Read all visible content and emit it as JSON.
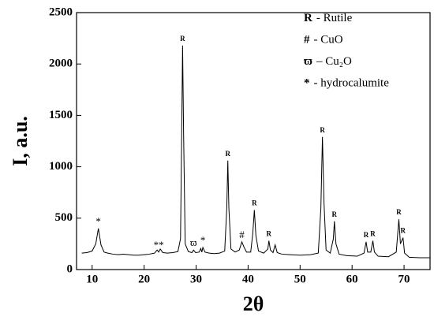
{
  "chart_data": {
    "type": "line",
    "color": "#000000",
    "x_label": "2θ",
    "y_label": "I, a.u.",
    "xlim": [
      7,
      75
    ],
    "ylim": [
      0,
      2500
    ],
    "xticks": [
      10,
      20,
      30,
      40,
      50,
      60,
      70
    ],
    "yticks": [
      0,
      500,
      1000,
      1500,
      2000,
      2500
    ],
    "x": [
      8,
      9,
      10,
      10.7,
      11.2,
      11.7,
      12.3,
      13,
      14,
      15,
      16,
      17,
      18,
      19,
      20,
      21,
      22,
      22.5,
      22.8,
      23.1,
      23.6,
      24.5,
      25.5,
      26.5,
      27.0,
      27.2,
      27.4,
      27.6,
      27.9,
      28.5,
      29.2,
      29.5,
      29.9,
      30.6,
      30.9,
      31.1,
      31.3,
      31.7,
      32.5,
      33.5,
      34.5,
      35.5,
      35.9,
      36.1,
      36.3,
      36.7,
      37.5,
      38.3,
      38.8,
      39.2,
      39.7,
      40.5,
      40.9,
      41.2,
      41.5,
      42,
      43,
      43.8,
      44.0,
      44.3,
      44.8,
      45.2,
      45.6,
      46.5,
      48,
      50,
      52,
      53.5,
      54.0,
      54.3,
      54.6,
      55.0,
      55.8,
      56.4,
      56.6,
      56.9,
      57.5,
      59,
      61,
      62.3,
      62.7,
      63.0,
      63.6,
      64.0,
      64.3,
      65,
      67,
      68.5,
      69.0,
      69.3,
      69.8,
      70.1,
      71,
      73,
      75
    ],
    "values": [
      160,
      165,
      180,
      250,
      400,
      240,
      170,
      160,
      150,
      145,
      150,
      145,
      140,
      140,
      145,
      150,
      160,
      190,
      170,
      200,
      165,
      160,
      165,
      175,
      300,
      1200,
      2180,
      1300,
      250,
      175,
      165,
      190,
      165,
      170,
      205,
      170,
      215,
      170,
      160,
      155,
      160,
      180,
      600,
      1060,
      600,
      200,
      170,
      190,
      270,
      220,
      170,
      170,
      350,
      580,
      330,
      180,
      160,
      200,
      280,
      190,
      165,
      240,
      165,
      150,
      145,
      140,
      145,
      160,
      600,
      1290,
      650,
      190,
      160,
      300,
      470,
      250,
      150,
      135,
      130,
      160,
      270,
      170,
      170,
      280,
      170,
      130,
      125,
      170,
      490,
      250,
      310,
      160,
      120,
      115,
      115
    ],
    "annotations": [
      {
        "text": "*",
        "x": 11.2
      },
      {
        "text": "**",
        "x": 22.8
      },
      {
        "text": "R",
        "x": 27.4
      },
      {
        "text": "ϖ",
        "x": 29.5
      },
      {
        "text": "*",
        "x": 31.3
      },
      {
        "text": "R",
        "x": 36.1
      },
      {
        "text": "#",
        "x": 38.8
      },
      {
        "text": "R",
        "x": 41.2
      },
      {
        "text": "R",
        "x": 44.0
      },
      {
        "text": "R",
        "x": 54.3
      },
      {
        "text": "R",
        "x": 56.6
      },
      {
        "text": "R",
        "x": 62.7
      },
      {
        "text": "R",
        "x": 64.0
      },
      {
        "text": "R",
        "x": 69.0
      },
      {
        "text": "R",
        "x": 69.8
      }
    ],
    "legend": [
      {
        "symbol": "R",
        "label": "- Rutile"
      },
      {
        "symbol": "#",
        "label": "- CuO"
      },
      {
        "symbol": "ϖ",
        "label": "– Cu₂O"
      },
      {
        "symbol": "*",
        "label": "- hydrocalumite"
      }
    ]
  }
}
